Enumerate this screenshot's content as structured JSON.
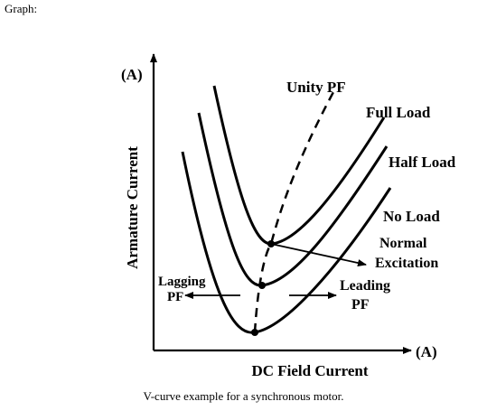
{
  "heading": "Graph:",
  "diagram": {
    "y_unit": "(A)",
    "x_unit": "(A)",
    "y_axis_label": "Armature Current",
    "x_axis_label": "DC Field Current",
    "curves": [
      "Full Load",
      "Half Load",
      "No Load"
    ],
    "unity_pf": "Unity PF",
    "normal_excitation": [
      "Normal",
      "Excitation"
    ],
    "lagging": [
      "Lagging",
      "PF"
    ],
    "leading": [
      "Leading",
      "PF"
    ]
  },
  "caption": "V-curve example for a synchronous motor."
}
